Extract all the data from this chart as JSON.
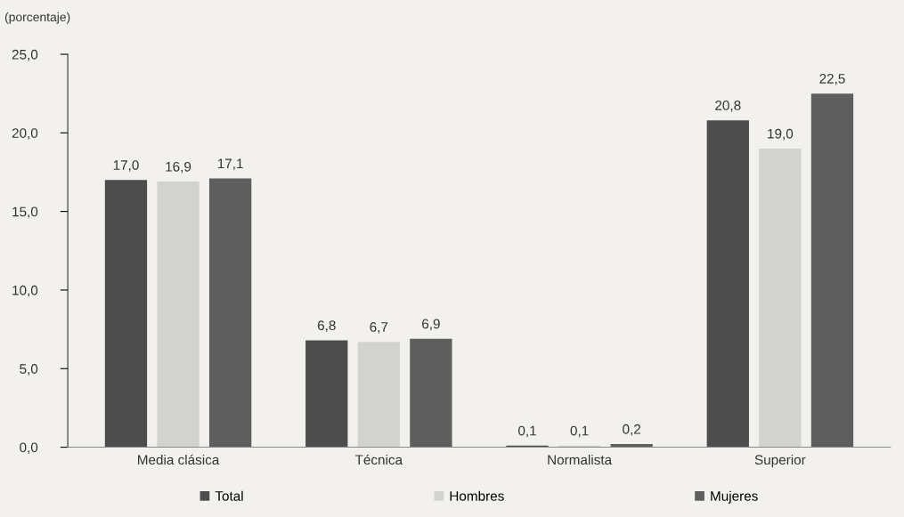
{
  "chart_data": {
    "type": "bar",
    "ylabel": "(porcentaje)",
    "categories": [
      "Media clásica",
      "Técnica",
      "Normalista",
      "Superior"
    ],
    "series": [
      {
        "name": "Total",
        "color": "#4d4d4d",
        "values": [
          17.0,
          6.8,
          0.1,
          20.8
        ],
        "value_labels": [
          "17,0",
          "6,8",
          "0,1",
          "20,8"
        ]
      },
      {
        "name": "Hombres",
        "color": "#d2d2d0",
        "values": [
          16.9,
          6.7,
          0.1,
          19.0
        ],
        "value_labels": [
          "16,9",
          "6,7",
          "0,1",
          "19,0"
        ]
      },
      {
        "name": "Mujeres",
        "color": "#5e5e5e",
        "values": [
          17.1,
          6.9,
          0.2,
          22.5
        ],
        "value_labels": [
          "17,1",
          "6,9",
          "0,2",
          "22,5"
        ]
      }
    ],
    "ylim": [
      0,
      25
    ],
    "yticks": [
      {
        "value": 0,
        "label": "0,0"
      },
      {
        "value": 5,
        "label": "5,0"
      },
      {
        "value": 10,
        "label": "10,0"
      },
      {
        "value": 15,
        "label": "15,0"
      },
      {
        "value": 20,
        "label": "20,0"
      },
      {
        "value": 25,
        "label": "25,0"
      }
    ],
    "grid": false,
    "legend": "bottom"
  }
}
